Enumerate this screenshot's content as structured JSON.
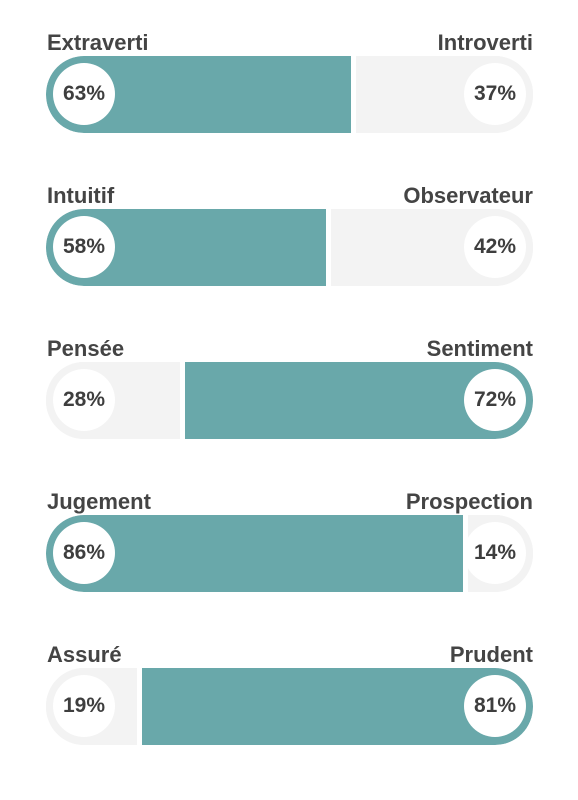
{
  "chart_data": {
    "type": "bar",
    "traits": [
      {
        "left_label": "Extraverti",
        "right_label": "Introverti",
        "left_value": 63,
        "right_value": 37,
        "left_text": "63%",
        "right_text": "37%"
      },
      {
        "left_label": "Intuitif",
        "right_label": "Observateur",
        "left_value": 58,
        "right_value": 42,
        "left_text": "58%",
        "right_text": "42%"
      },
      {
        "left_label": "Pensée",
        "right_label": "Sentiment",
        "left_value": 28,
        "right_value": 72,
        "left_text": "28%",
        "right_text": "72%"
      },
      {
        "left_label": "Jugement",
        "right_label": "Prospection",
        "left_value": 86,
        "right_value": 14,
        "left_text": "86%",
        "right_text": "14%"
      },
      {
        "left_label": "Assuré",
        "right_label": "Prudent",
        "left_value": 19,
        "right_value": 81,
        "left_text": "19%",
        "right_text": "81%"
      }
    ],
    "colors": {
      "dominant": "#69a8aa",
      "track": "#f3f3f3"
    }
  }
}
